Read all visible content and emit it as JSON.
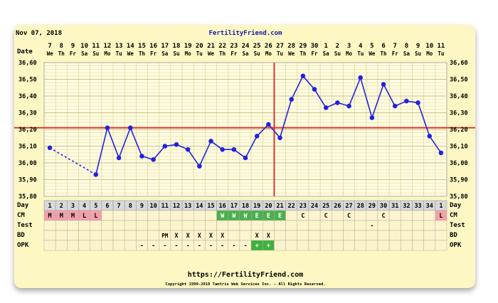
{
  "header": {
    "date": "Nov 07, 2018",
    "site": "FertilityFriend.com"
  },
  "footer": {
    "url": "https://FertilityFriend.com",
    "copyright": "Copyright 1998-2018 Tamtris Web Services Inc. - All Rights Reserved."
  },
  "row_labels": {
    "date": "Date",
    "day": "Day",
    "cm": "CM",
    "test": "Test",
    "bd": "BD",
    "opk": "OPK"
  },
  "colors": {
    "line": "#2222dd",
    "coverline": "#e02020",
    "grid": "#ddd8a0",
    "cm_red": "#f2a0ae",
    "cm_green": "#4caf50",
    "opk_green": "#3fb040",
    "panel": "#fdf7c3"
  },
  "chart_data": {
    "type": "line",
    "dates": [
      "7",
      "8",
      "9",
      "10",
      "11",
      "12",
      "13",
      "14",
      "15",
      "16",
      "17",
      "18",
      "19",
      "20",
      "21",
      "22",
      "23",
      "24",
      "25",
      "26",
      "27",
      "28",
      "29",
      "30",
      "1",
      "2",
      "3",
      "4",
      "5",
      "6",
      "7",
      "8",
      "9",
      "10",
      "11"
    ],
    "weekdays": [
      "We",
      "Th",
      "Fr",
      "Sa",
      "Su",
      "Mo",
      "Tu",
      "We",
      "Th",
      "Fr",
      "Sa",
      "Su",
      "Mo",
      "Tu",
      "We",
      "Th",
      "Fr",
      "Sa",
      "Su",
      "Mo",
      "Tu",
      "We",
      "Th",
      "Fr",
      "Sa",
      "Su",
      "Mo",
      "Tu",
      "We",
      "Th",
      "Fr",
      "Sa",
      "Su",
      "Mo",
      "Tu"
    ],
    "cycle_days": [
      "1",
      "2",
      "3",
      "4",
      "5",
      "6",
      "7",
      "8",
      "9",
      "10",
      "11",
      "12",
      "13",
      "14",
      "15",
      "16",
      "17",
      "18",
      "19",
      "20",
      "21",
      "22",
      "23",
      "24",
      "25",
      "26",
      "27",
      "28",
      "29",
      "30",
      "31",
      "32",
      "33",
      "34",
      "1"
    ],
    "temperatures": [
      36.09,
      null,
      null,
      null,
      35.93,
      36.21,
      36.03,
      36.21,
      36.04,
      36.02,
      36.1,
      36.11,
      36.08,
      35.98,
      36.13,
      36.08,
      36.08,
      36.03,
      36.16,
      36.23,
      36.15,
      36.38,
      36.52,
      36.44,
      36.33,
      36.36,
      36.34,
      36.51,
      36.27,
      36.47,
      36.34,
      36.37,
      36.36,
      36.16,
      36.06
    ],
    "ylim": [
      35.8,
      36.6
    ],
    "y_ticks": [
      "35,80",
      "35,90",
      "36,00",
      "36,10",
      "36,20",
      "36,30",
      "36,40",
      "36,50",
      "36,60"
    ],
    "coverline": 36.21,
    "ovulation_day_index": 20,
    "cm": [
      "M",
      "M",
      "M",
      "L",
      "L",
      "",
      "",
      "",
      "",
      "",
      "",
      "",
      "",
      "",
      "",
      "W",
      "W",
      "W",
      "E",
      "E",
      "E",
      "",
      "C",
      "",
      "C",
      "",
      "C",
      "",
      "",
      "C",
      "",
      "",
      "",
      "",
      "L"
    ],
    "test": [
      "",
      "",
      "",
      "",
      "",
      "",
      "",
      "",
      "",
      "",
      "",
      "",
      "",
      "",
      "",
      "",
      "",
      "",
      "",
      "",
      "",
      "",
      "",
      "",
      "",
      "",
      "",
      "",
      "-",
      "",
      "",
      "",
      "",
      "",
      ""
    ],
    "bd": [
      "",
      "",
      "",
      "",
      "",
      "",
      "",
      "",
      "",
      "",
      "PM",
      "X",
      "X",
      "X",
      "X",
      "X",
      "",
      "",
      "X",
      "X",
      "",
      "",
      "",
      "",
      "",
      "",
      "",
      "",
      "",
      "",
      "",
      "",
      "",
      "",
      ""
    ],
    "opk": [
      "",
      "",
      "",
      "",
      "",
      "",
      "",
      "",
      "-",
      "-",
      "-",
      "-",
      "-",
      "-",
      "-",
      "-",
      "-",
      "-",
      "+",
      "+",
      "",
      "",
      "",
      "",
      "",
      "",
      "",
      "",
      "",
      "",
      "",
      "",
      "",
      "",
      ""
    ]
  }
}
